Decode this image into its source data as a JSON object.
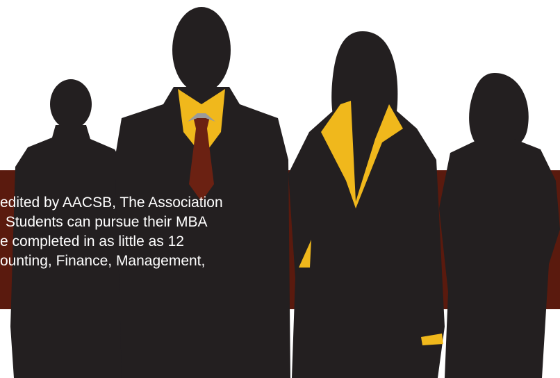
{
  "banner": {
    "text_lines": [
      "edited by AACSB, The Association",
      " Students can pursue their MBA",
      "e completed in as little as 12",
      "ounting, Finance, Management,"
    ]
  }
}
